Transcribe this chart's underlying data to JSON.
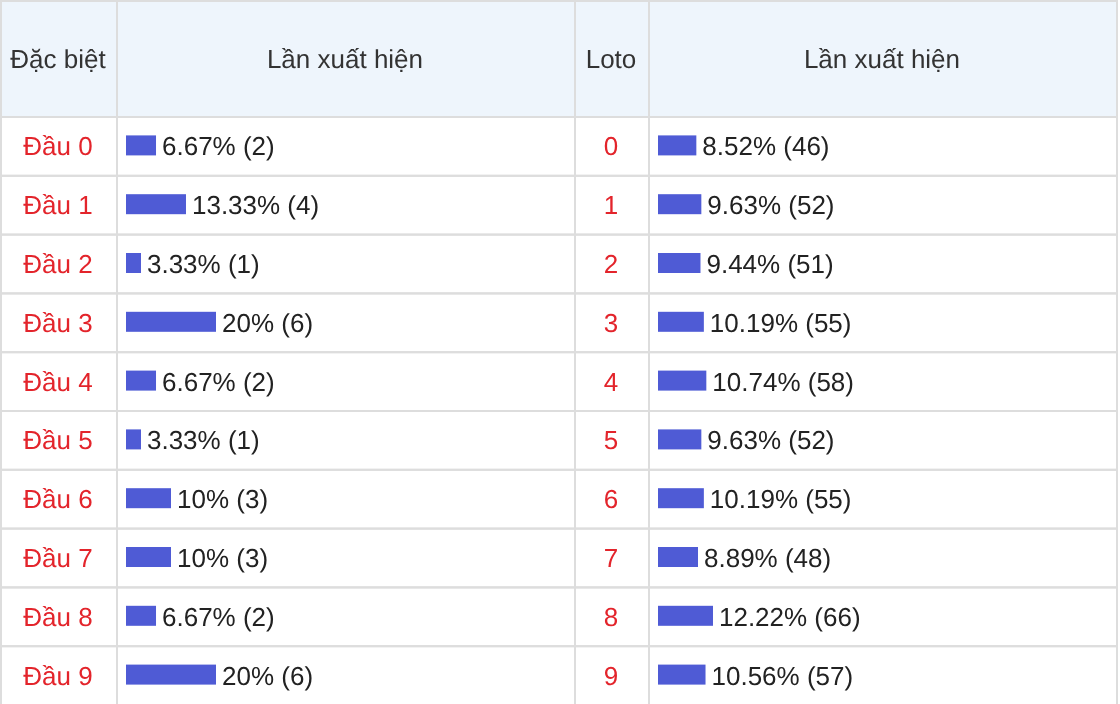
{
  "chart_data": [
    {
      "type": "bar",
      "orientation": "horizontal",
      "ylabel": "Đặc biệt",
      "xlabel": "Lần xuất hiện",
      "color": "#4f5bd5",
      "categories": [
        "Đầu 0",
        "Đầu 1",
        "Đầu 2",
        "Đầu 3",
        "Đầu 4",
        "Đầu 5",
        "Đầu 6",
        "Đầu 7",
        "Đầu 8",
        "Đầu 9"
      ],
      "values": [
        6.67,
        13.33,
        3.33,
        20,
        6.67,
        3.33,
        10,
        10,
        6.67,
        20
      ],
      "value_labels": [
        "6.67% (2)",
        "13.33% (4)",
        "3.33% (1)",
        "20% (6)",
        "6.67% (2)",
        "3.33% (1)",
        "10% (3)",
        "10% (3)",
        "6.67% (2)",
        "20% (6)"
      ]
    },
    {
      "type": "bar",
      "orientation": "horizontal",
      "ylabel": "Loto",
      "xlabel": "Lần xuất hiện",
      "color": "#4f5bd5",
      "categories": [
        "0",
        "1",
        "2",
        "3",
        "4",
        "5",
        "6",
        "7",
        "8",
        "9"
      ],
      "values": [
        8.52,
        9.63,
        9.44,
        10.19,
        10.74,
        9.63,
        10.19,
        8.89,
        12.22,
        10.56
      ],
      "value_labels": [
        "8.52% (46)",
        "9.63% (52)",
        "9.44% (51)",
        "10.19% (55)",
        "10.74% (58)",
        "9.63% (52)",
        "10.19% (55)",
        "8.89% (48)",
        "12.22% (66)",
        "10.56% (57)"
      ]
    }
  ]
}
